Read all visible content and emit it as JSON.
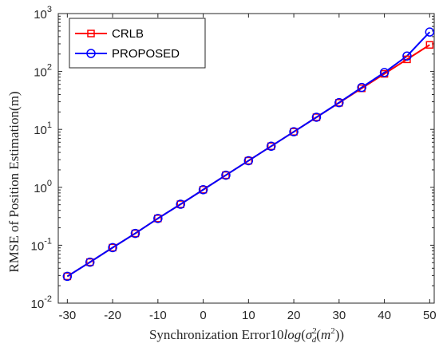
{
  "chart_data": {
    "type": "line",
    "xlabel": "Synchronization Error10log(σ_d^2(m^2))",
    "xlabel_parts": {
      "prefix": "Synchronization Error10",
      "log": "log",
      "sigma": "σ",
      "sub": "d",
      "sup": "2",
      "m": "m",
      "m_sup": "2"
    },
    "ylabel": "RMSE of Position Estimation(m)",
    "x": [
      -30,
      -25,
      -20,
      -15,
      -10,
      -5,
      0,
      5,
      10,
      15,
      20,
      25,
      30,
      35,
      40,
      45,
      50
    ],
    "xlim": [
      -32,
      51
    ],
    "ylim": [
      0.01,
      1000
    ],
    "yscale": "log",
    "grid": false,
    "legend_position": "top-left",
    "xticks": [
      {
        "value": -30,
        "label": "-30"
      },
      {
        "value": -20,
        "label": "-20"
      },
      {
        "value": -10,
        "label": "-10"
      },
      {
        "value": 0,
        "label": "0"
      },
      {
        "value": 10,
        "label": "10"
      },
      {
        "value": 20,
        "label": "20"
      },
      {
        "value": 30,
        "label": "30"
      },
      {
        "value": 40,
        "label": "40"
      },
      {
        "value": 50,
        "label": "50"
      }
    ],
    "yticks": [
      {
        "value": 0.01,
        "base": "10",
        "exp": "-2"
      },
      {
        "value": 0.1,
        "base": "10",
        "exp": "-1"
      },
      {
        "value": 1,
        "base": "10",
        "exp": "0"
      },
      {
        "value": 10,
        "base": "10",
        "exp": "1"
      },
      {
        "value": 100,
        "base": "10",
        "exp": "2"
      },
      {
        "value": 1000,
        "base": "10",
        "exp": "3"
      }
    ],
    "series": [
      {
        "name": "CRLB",
        "color": "#ff0000",
        "marker": "square",
        "values": [
          0.029,
          0.051,
          0.091,
          0.16,
          0.29,
          0.51,
          0.91,
          1.62,
          2.88,
          5.12,
          9.1,
          16.2,
          28.8,
          51.2,
          91,
          162,
          288
        ]
      },
      {
        "name": "PROPOSED",
        "color": "#0000ff",
        "marker": "circle",
        "values": [
          0.029,
          0.051,
          0.091,
          0.16,
          0.29,
          0.51,
          0.91,
          1.62,
          2.88,
          5.12,
          9.1,
          16.2,
          29,
          53,
          96,
          185,
          480
        ]
      }
    ]
  }
}
